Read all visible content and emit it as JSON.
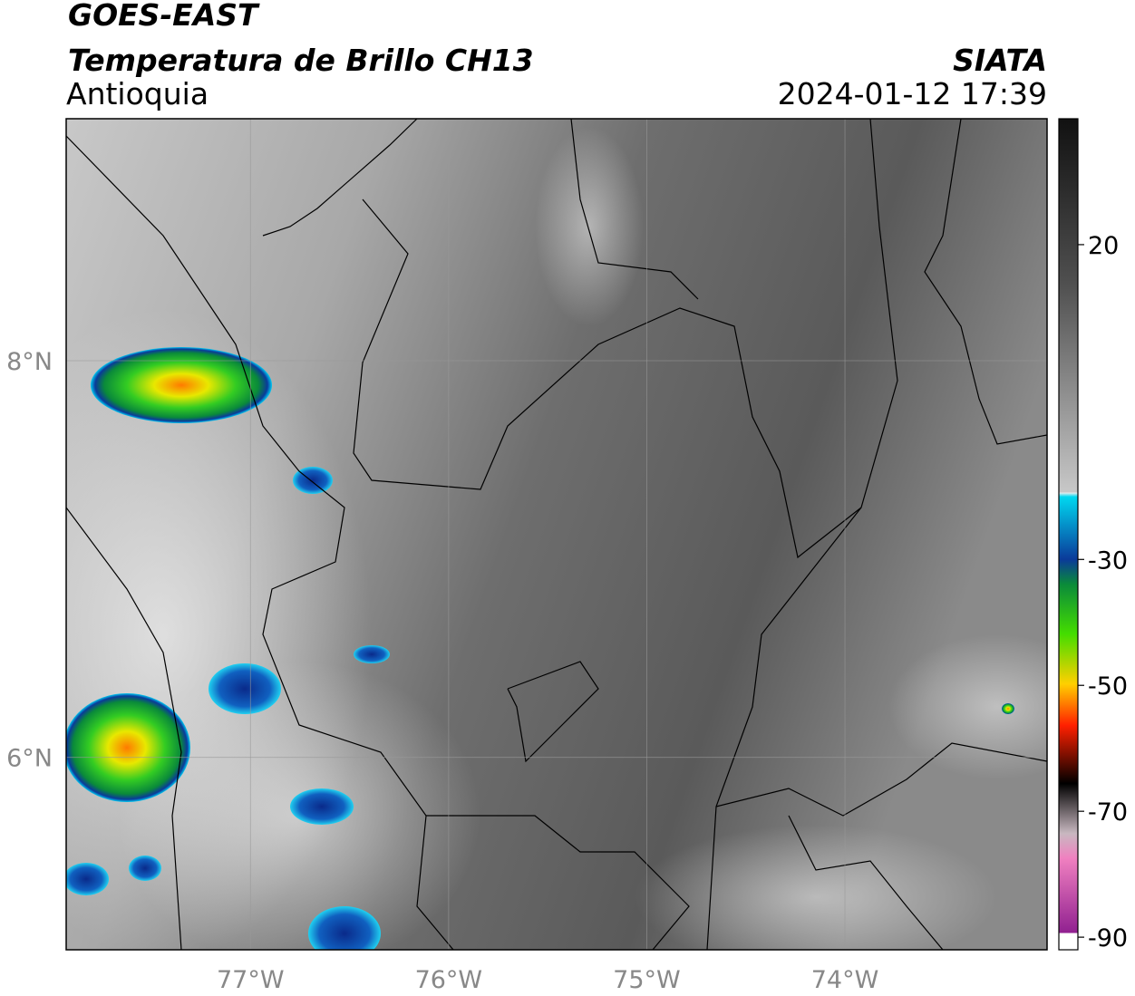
{
  "header": {
    "satellite": "GOES-EAST",
    "product": "Temperatura de Brillo CH13",
    "region": "Antioquia",
    "agency": "SIATA",
    "datetime": "2024-01-12 17:39"
  },
  "map": {
    "xlim": [
      -77.93,
      -72.98
    ],
    "ylim": [
      5.03,
      9.22
    ],
    "xticks": [
      {
        "value": -77,
        "label": "77°W"
      },
      {
        "value": -76,
        "label": "76°W"
      },
      {
        "value": -75,
        "label": "75°W"
      },
      {
        "value": -74,
        "label": "74°W"
      }
    ],
    "yticks": [
      {
        "value": 8,
        "label": "8°N"
      },
      {
        "value": 6,
        "label": "6°N"
      }
    ],
    "grid": true
  },
  "colorbar": {
    "lim": [
      -92,
      40
    ],
    "ticks": [
      20,
      -30,
      -50,
      -70,
      -90
    ]
  }
}
